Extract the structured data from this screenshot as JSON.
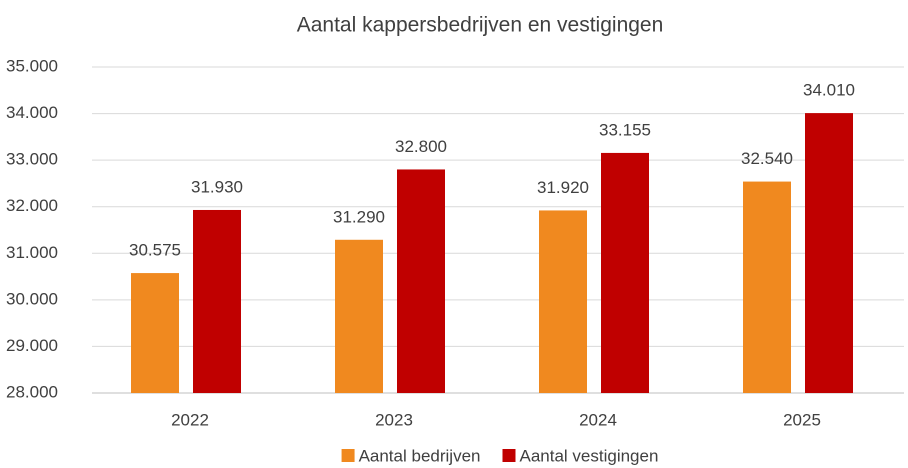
{
  "chart_data": {
    "type": "bar",
    "title": "Aantal kappersbedrijven en vestigingen",
    "categories": [
      "2022",
      "2023",
      "2024",
      "2025"
    ],
    "series": [
      {
        "name": "Aantal bedrijven",
        "color": "#f0891f",
        "values": [
          30575,
          31290,
          31920,
          32540
        ],
        "value_labels": [
          "30.575",
          "31.290",
          "31.920",
          "32.540"
        ]
      },
      {
        "name": "Aantal vestigingen",
        "color": "#c00000",
        "values": [
          31930,
          32800,
          33155,
          34010
        ],
        "value_labels": [
          "31.930",
          "32.800",
          "33.155",
          "34.010"
        ]
      }
    ],
    "ylim": [
      28000,
      35000
    ],
    "yticks": [
      {
        "value": 28000,
        "label": "28.000"
      },
      {
        "value": 29000,
        "label": "29.000"
      },
      {
        "value": 30000,
        "label": "30.000"
      },
      {
        "value": 31000,
        "label": "31.000"
      },
      {
        "value": 32000,
        "label": "32.000"
      },
      {
        "value": 33000,
        "label": "33.000"
      },
      {
        "value": 34000,
        "label": "34.000"
      },
      {
        "value": 35000,
        "label": "35.000"
      }
    ],
    "grid": true,
    "legend": "bottom"
  }
}
